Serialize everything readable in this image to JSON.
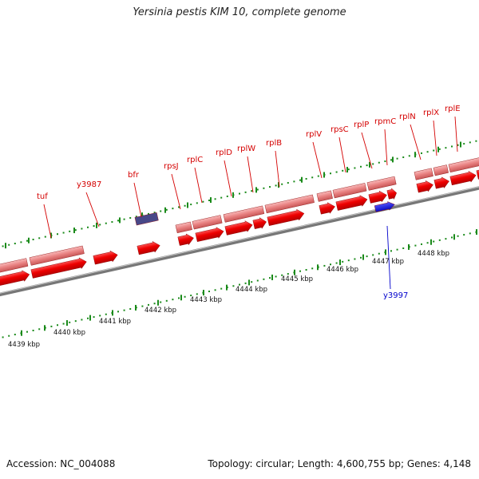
{
  "title": "Yersinia pestis KIM 10, complete genome",
  "accession": "Accession: NC_004088",
  "summary": "Topology: circular; Length: 4,600,755 bp; Genes: 4,148",
  "colors": {
    "cds_dark": "#ee0000",
    "cds_light": "#e88080",
    "backbone": "#888888",
    "tick": "#1a8a1a",
    "label_red": "#d40000",
    "label_blue": "#0000cc",
    "gene_blue": "#1010dd",
    "gene_navy": "#404088"
  },
  "kbp_labels": [
    "4439 kbp",
    "4440 kbp",
    "4441 kbp",
    "4442 kbp",
    "4443 kbp",
    "4444 kbp",
    "4445 kbp",
    "4446 kbp",
    "4447 kbp",
    "4448 kbp"
  ],
  "gene_labels": {
    "top": [
      "tuf",
      "y3987",
      "bfr",
      "rpsJ",
      "rplC",
      "rplD",
      "rplW",
      "rplB",
      "rplV",
      "rpsC",
      "rplP",
      "rpmC",
      "rplN",
      "rplX",
      "rplE"
    ],
    "bottom": [
      "y3997"
    ]
  }
}
